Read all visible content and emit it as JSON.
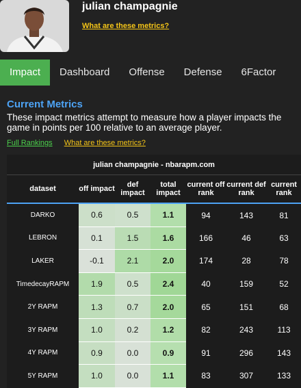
{
  "header": {
    "name": "julian champagnie",
    "metrics_link": "What are these metrics?"
  },
  "tabs": [
    "Impact",
    "Dashboard",
    "Offense",
    "Defense",
    "6Factor"
  ],
  "active_tab": 0,
  "section": {
    "title": "Current Metrics",
    "description": "These impact metrics attempt to measure how a player impacts the game in points per 100 relative to an average player.",
    "links": [
      "Full Rankings",
      "What are these metrics?"
    ]
  },
  "table": {
    "title": "julian champagnie - nbarapm.com",
    "columns": [
      "dataset",
      "off impact",
      "def impact",
      "total impact",
      "current off rank",
      "current def rank",
      "current rank"
    ],
    "rows": [
      [
        "DARKO",
        "0.6",
        "0.5",
        "1.1",
        "94",
        "143",
        "81"
      ],
      [
        "LEBRON",
        "0.1",
        "1.5",
        "1.6",
        "166",
        "46",
        "63"
      ],
      [
        "LAKER",
        "-0.1",
        "2.1",
        "2.0",
        "174",
        "28",
        "78"
      ],
      [
        "TimedecayRAPM",
        "1.9",
        "0.5",
        "2.4",
        "40",
        "159",
        "52"
      ],
      [
        "2Y RAPM",
        "1.3",
        "0.7",
        "2.0",
        "65",
        "151",
        "68"
      ],
      [
        "3Y RAPM",
        "1.0",
        "0.2",
        "1.2",
        "82",
        "243",
        "113"
      ],
      [
        "4Y RAPM",
        "0.9",
        "0.0",
        "0.9",
        "91",
        "296",
        "143"
      ],
      [
        "5Y RAPM",
        "1.0",
        "0.0",
        "1.1",
        "83",
        "307",
        "133"
      ]
    ]
  }
}
